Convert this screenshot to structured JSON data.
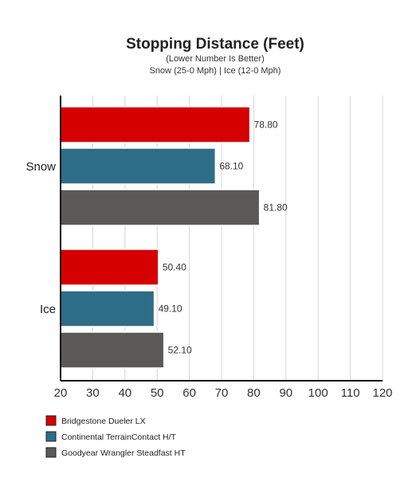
{
  "chart_data": {
    "type": "bar",
    "orientation": "horizontal",
    "title": "Stopping Distance (Feet)",
    "subtitle_lines": [
      "(Lower Number Is Better)",
      "Snow (25-0 Mph) | Ice (12-0 Mph)"
    ],
    "categories": [
      "Snow",
      "Ice"
    ],
    "series": [
      {
        "name": "Bridgestone Dueler LX",
        "color": "#d50000",
        "values": [
          78.8,
          50.4
        ],
        "labels": [
          "78.80",
          "50.40"
        ]
      },
      {
        "name": "Continental TerrainContact H/T",
        "color": "#2e6d87",
        "values": [
          68.1,
          49.1
        ],
        "labels": [
          "68.10",
          "49.10"
        ]
      },
      {
        "name": "Goodyear Wrangler Steadfast HT",
        "color": "#5c5858",
        "values": [
          81.8,
          52.1
        ],
        "labels": [
          "81.80",
          "52.10"
        ]
      }
    ],
    "xlim": [
      20,
      120
    ],
    "xticks": [
      20,
      30,
      40,
      50,
      60,
      70,
      80,
      90,
      100,
      110,
      120
    ],
    "grid": true,
    "legend_position": "bottom-left"
  }
}
